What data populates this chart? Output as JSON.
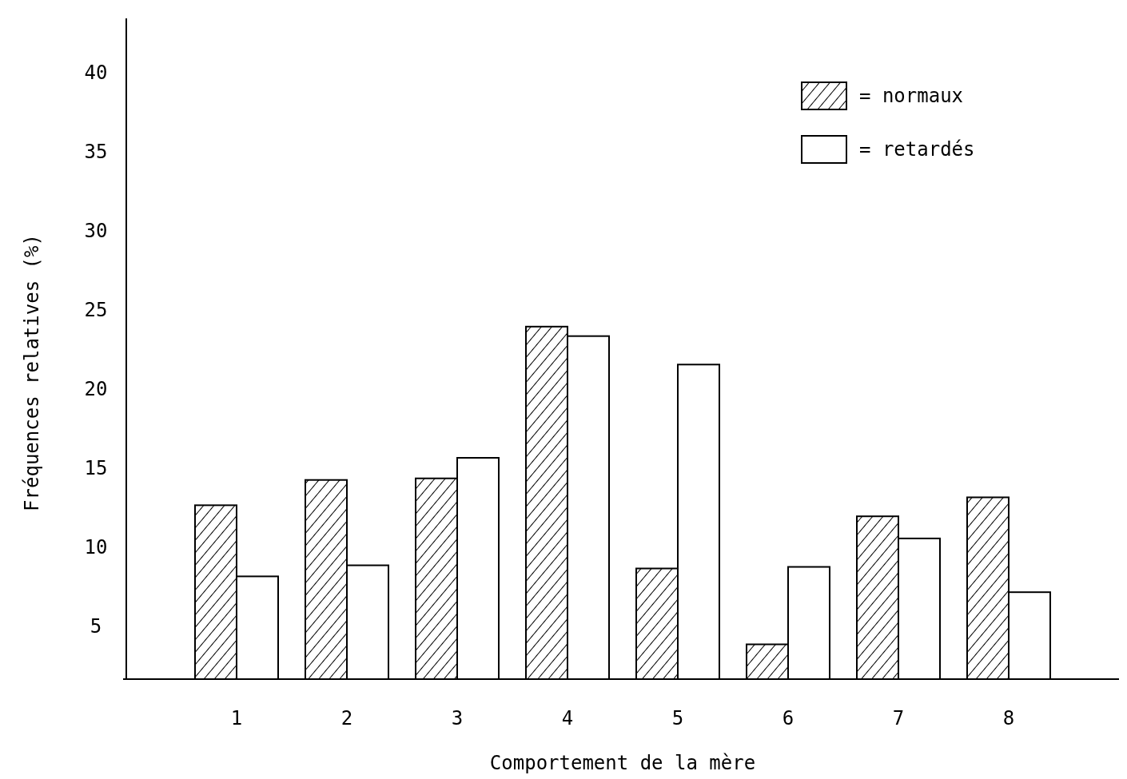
{
  "chart_data": {
    "type": "bar",
    "xlabel": "Comportement de la mère",
    "ylabel": "Fréquences relatives (%)",
    "categories": [
      "1",
      "2",
      "3",
      "4",
      "5",
      "6",
      "7",
      "8"
    ],
    "series": [
      {
        "name": "= normaux",
        "color": "#000000",
        "values": [
          12.7,
          14.3,
          14.4,
          24.0,
          8.7,
          3.9,
          12.0,
          13.2
        ]
      },
      {
        "name": "= retardés",
        "color": "#ffffff",
        "values": [
          8.2,
          8.9,
          15.7,
          23.4,
          21.6,
          8.8,
          10.6,
          7.2
        ]
      }
    ],
    "ylim": [
      1.7,
      43.5
    ],
    "yticks": [
      5,
      10,
      15,
      20,
      25,
      30,
      35,
      40
    ],
    "grid": false,
    "legend": "top right"
  }
}
